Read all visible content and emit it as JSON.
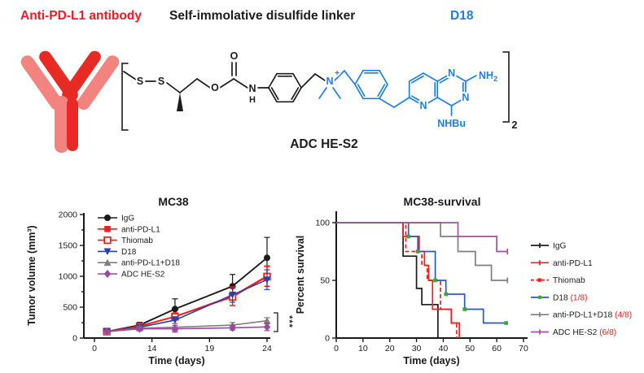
{
  "figure": {
    "antibody_label": "Anti-PD-L1 antibody",
    "linker_label": "Self-immolative disulfide linker",
    "drug_label": "D18",
    "adc_name": "ADC HE-S2",
    "colors": {
      "antibody_red": "#ed1c24",
      "drug_blue": "#1e7ee7",
      "bond_black": "#1c1c1c"
    },
    "structure_atoms": {
      "s1": "S",
      "s2": "S",
      "o_ester": "O",
      "o_carbonyl": "O",
      "n_carbamate": "N",
      "h_carbamate": "H",
      "n_quaternary": "N",
      "plus": "+",
      "n_pyrido": "N",
      "n_pyrimidine_1": "N",
      "n_pyrimidine_3": "N",
      "nh2_main": "NH",
      "nh2_sub": "2",
      "nhbu": "NHBu",
      "bracket_subscript": "2"
    }
  },
  "chart_data": [
    {
      "type": "line",
      "title": "MC38",
      "xlabel": "Time (days)",
      "ylabel": "Tumor volume (mm³)",
      "xticks": [
        0,
        14,
        19,
        24
      ],
      "yticks": [
        0,
        500,
        1000,
        1500,
        2000
      ],
      "ylim": [
        0,
        2000
      ],
      "x_days": [
        3,
        11,
        16,
        21,
        24
      ],
      "significance": "***",
      "legend_position": "top-left",
      "series": [
        {
          "name": "IgG",
          "color": "#1b1b1b",
          "marker": "circle",
          "values": [
            105,
            210,
            470,
            840,
            1300
          ],
          "errors": [
            25,
            45,
            165,
            190,
            330
          ]
        },
        {
          "name": "anti-PD-L1",
          "color": "#e8231f",
          "marker": "square",
          "values": [
            105,
            195,
            350,
            680,
            1005
          ],
          "errors": [
            20,
            35,
            60,
            150,
            165
          ]
        },
        {
          "name": "Thiomab",
          "color": "#e8231f",
          "marker": "square-open",
          "values": [
            105,
            190,
            345,
            665,
            995
          ],
          "errors": [
            20,
            30,
            55,
            140,
            160
          ]
        },
        {
          "name": "D18",
          "color": "#2a41a8",
          "marker": "triangle-down",
          "values": [
            105,
            175,
            290,
            700,
            945
          ],
          "errors": [
            20,
            30,
            55,
            120,
            160
          ]
        },
        {
          "name": "anti-PD-L1+D18",
          "color": "#7f7f7f",
          "marker": "triangle-up",
          "values": [
            105,
            160,
            175,
            210,
            280
          ],
          "errors": [
            15,
            25,
            60,
            40,
            50
          ]
        },
        {
          "name": "ADC HE-S2",
          "color": "#9b4a9b",
          "marker": "diamond",
          "values": [
            105,
            150,
            150,
            165,
            180
          ],
          "errors": [
            15,
            25,
            55,
            35,
            60
          ]
        }
      ]
    },
    {
      "type": "line",
      "subtype": "survival-step",
      "title": "MC38-survival",
      "xlabel": "Time (days)",
      "ylabel": "Percent survival",
      "xticks": [
        0,
        10,
        20,
        30,
        40,
        50,
        60,
        70
      ],
      "yticks": [
        0,
        50,
        100
      ],
      "xlim": [
        0,
        70
      ],
      "ylim": [
        0,
        100
      ],
      "censor_color": "#35a93a",
      "fraction_color": "#e8231f",
      "legend_position": "right",
      "series": [
        {
          "name": "IgG",
          "fraction": "",
          "color": "#1b1b1b",
          "dash": false,
          "end_tick": false,
          "steps": [
            [
              0,
              100
            ],
            [
              25,
              100
            ],
            [
              25,
              71
            ],
            [
              30,
              71
            ],
            [
              30,
              43
            ],
            [
              32,
              43
            ],
            [
              32,
              29
            ],
            [
              38,
              29
            ],
            [
              38,
              0
            ]
          ]
        },
        {
          "name": "anti-PD-L1",
          "fraction": "",
          "color": "#e8231f",
          "dash": false,
          "end_tick": false,
          "steps": [
            [
              0,
              100
            ],
            [
              25,
              100
            ],
            [
              25,
              88
            ],
            [
              31,
              88
            ],
            [
              31,
              75
            ],
            [
              33,
              75
            ],
            [
              33,
              63
            ],
            [
              34.5,
              63
            ],
            [
              34.5,
              50
            ],
            [
              36,
              50
            ],
            [
              36,
              25
            ],
            [
              43,
              25
            ],
            [
              43,
              13
            ],
            [
              46,
              13
            ],
            [
              46,
              0
            ]
          ]
        },
        {
          "name": "Thiomab",
          "fraction": "",
          "color": "#e8231f",
          "dash": true,
          "end_tick": false,
          "steps": [
            [
              0,
              100
            ],
            [
              26,
              100
            ],
            [
              26,
              75
            ],
            [
              32,
              75
            ],
            [
              32,
              63
            ],
            [
              34,
              63
            ],
            [
              34,
              50
            ],
            [
              39,
              50
            ],
            [
              39,
              25
            ],
            [
              43,
              25
            ],
            [
              43,
              13
            ],
            [
              45,
              13
            ],
            [
              45,
              0
            ]
          ]
        },
        {
          "name": "D18",
          "fraction": "(1/8)",
          "color": "#2b58c8",
          "dash": false,
          "end_tick": false,
          "steps": [
            [
              0,
              100
            ],
            [
              27,
              100
            ],
            [
              27,
              88
            ],
            [
              30.5,
              88
            ],
            [
              30.5,
              75
            ],
            [
              37,
              75
            ],
            [
              37,
              50
            ],
            [
              41,
              50
            ],
            [
              41,
              38
            ],
            [
              48,
              38
            ],
            [
              48,
              25
            ],
            [
              55,
              25
            ],
            [
              55,
              13
            ],
            [
              63.5,
              13
            ]
          ],
          "censor_marks": [
            [
              27,
              88
            ],
            [
              30.5,
              75
            ],
            [
              37,
              50
            ],
            [
              41,
              38
            ],
            [
              48,
              25
            ],
            [
              63.5,
              13
            ]
          ]
        },
        {
          "name": "anti-PD-L1+D18",
          "fraction": "(4/8)",
          "color": "#7f7f7f",
          "dash": false,
          "end_tick": true,
          "steps": [
            [
              0,
              100
            ],
            [
              39,
              100
            ],
            [
              39,
              88
            ],
            [
              45.5,
              88
            ],
            [
              45.5,
              75
            ],
            [
              52,
              75
            ],
            [
              52,
              63
            ],
            [
              58,
              63
            ],
            [
              58,
              50
            ],
            [
              64,
              50
            ]
          ]
        },
        {
          "name": "ADC HE-S2",
          "fraction": "(6/8)",
          "color": "#a44fa4",
          "dash": false,
          "end_tick": true,
          "steps": [
            [
              0,
              100
            ],
            [
              45.5,
              100
            ],
            [
              45.5,
              88
            ],
            [
              60,
              88
            ],
            [
              60,
              75
            ],
            [
              64,
              75
            ]
          ]
        }
      ]
    }
  ]
}
